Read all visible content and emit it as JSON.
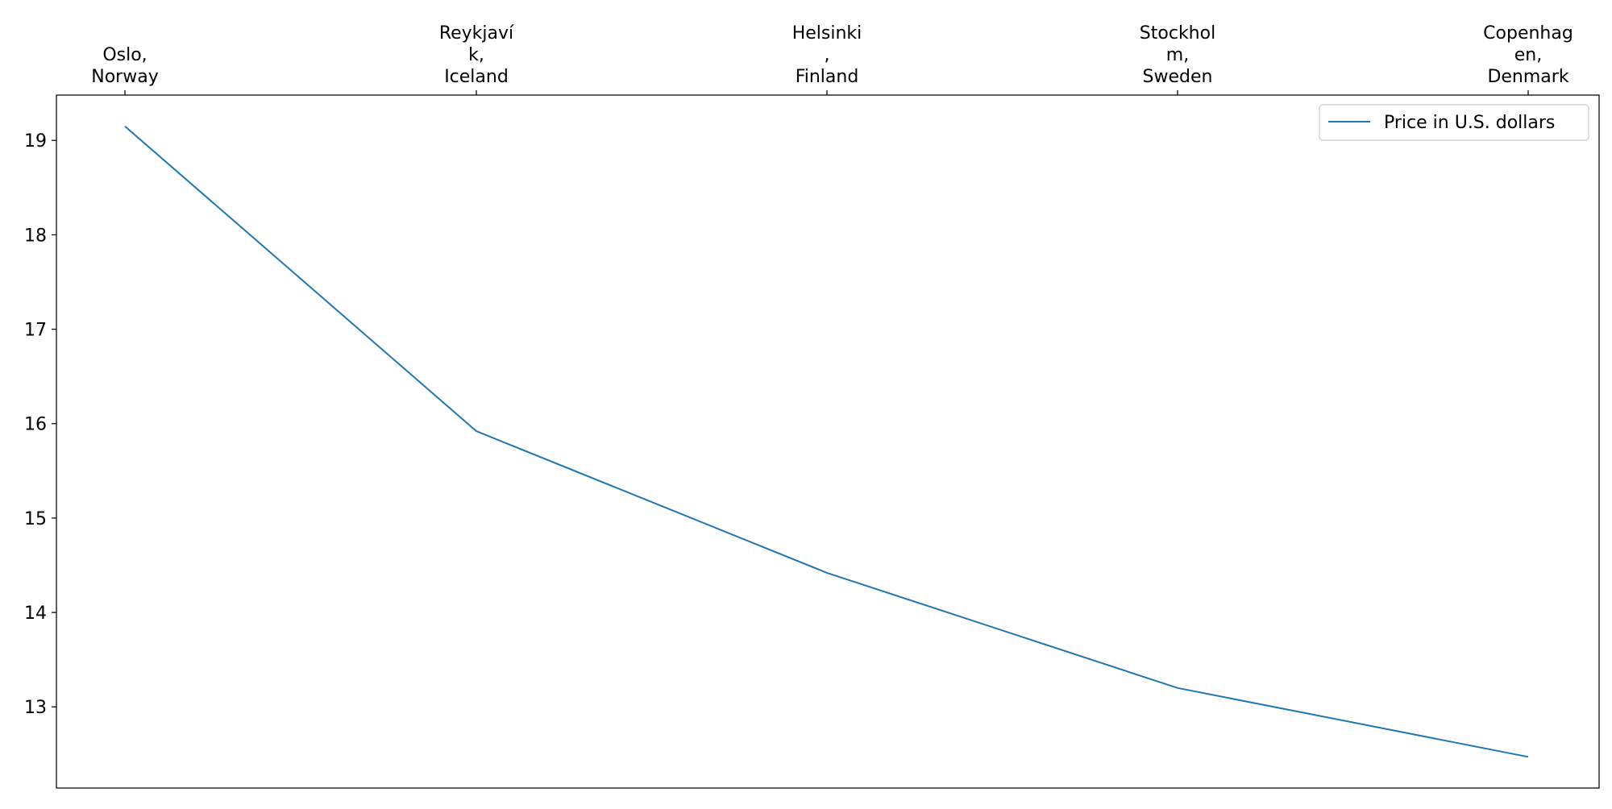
{
  "chart_data": {
    "type": "line",
    "categories": [
      "Oslo, Norway",
      "Reykjaví k, Iceland",
      "Helsinki , Finland",
      "Stockhol m, Sweden",
      "Copenhag en, Denmark"
    ],
    "category_label_lines": [
      [
        "Oslo,",
        "Norway"
      ],
      [
        "Reykjaví",
        "k,",
        "Iceland"
      ],
      [
        "Helsinki",
        ",",
        "Finland"
      ],
      [
        "Stockhol",
        "m,",
        "Sweden"
      ],
      [
        "Copenhag",
        "en,",
        "Denmark"
      ]
    ],
    "series": [
      {
        "name": "Price in U.S. dollars",
        "values": [
          19.15,
          15.92,
          14.42,
          13.2,
          12.47
        ],
        "color": "#1f77b4"
      }
    ],
    "y_ticks": [
      13,
      14,
      15,
      16,
      17,
      18,
      19
    ],
    "ylim": [
      12.14,
      19.48
    ],
    "x_axis_position": "top",
    "grid": false,
    "legend": {
      "placement": "top-right",
      "entries": [
        "Price in U.S. dollars"
      ]
    },
    "title": "",
    "xlabel": "",
    "ylabel": ""
  }
}
